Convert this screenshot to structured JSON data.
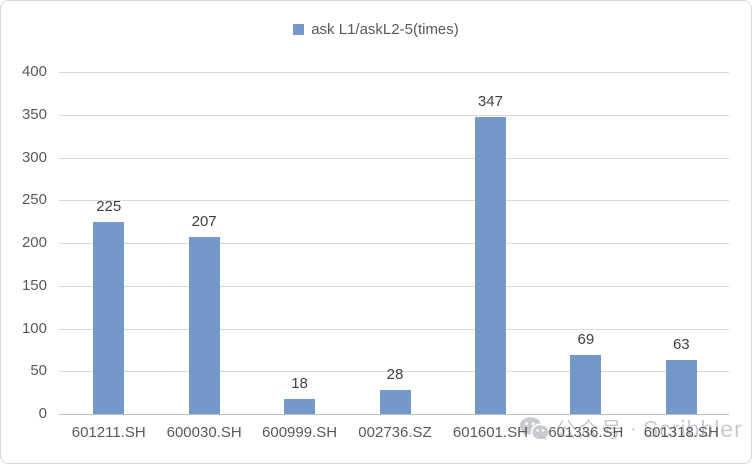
{
  "frame": {
    "background": "#ffffff",
    "border_color": "#d9d9d9"
  },
  "legend": {
    "label": "ask L1/askL2-5(times)",
    "marker_color": "#7398c9"
  },
  "chart_data": {
    "type": "bar",
    "title": "ask L1/askL2-5(times)",
    "categories": [
      "601211.SH",
      "600030.SH",
      "600999.SH",
      "002736.SZ",
      "601601.SH",
      "601336.SH",
      "601318.SH"
    ],
    "values": [
      225,
      207,
      18,
      28,
      347,
      69,
      63
    ],
    "xlabel": "",
    "ylabel": "",
    "ylim": [
      0,
      400
    ],
    "ytick_step": 50,
    "yticks": [
      0,
      50,
      100,
      150,
      200,
      250,
      300,
      350,
      400
    ],
    "grid": true,
    "data_labels": true,
    "legend_position": "top-center",
    "bar_color": "#7398c9",
    "gridline_color": "#d9d9d9",
    "axis_line_color": "#bfbfbf",
    "tick_label_color": "#595959",
    "data_label_color": "#404040"
  },
  "watermark": {
    "icon": "wechat-icon",
    "text_cn": "公众号",
    "separator": "·",
    "text_en": "Scribbler",
    "color": "#c7cbd1"
  }
}
